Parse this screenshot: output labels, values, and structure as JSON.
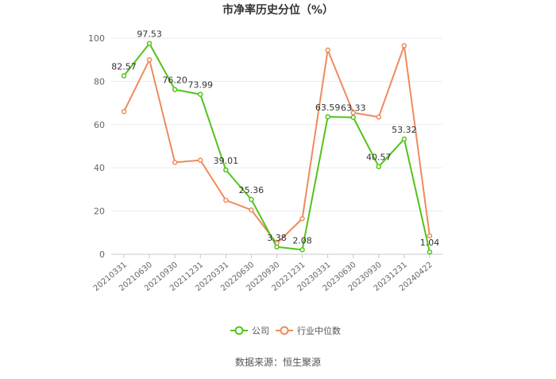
{
  "chart_data": {
    "type": "line",
    "title": "市净率历史分位（%）",
    "categories": [
      "20210331",
      "20210630",
      "20210930",
      "20211231",
      "20220331",
      "20220630",
      "20220930",
      "20221231",
      "20230331",
      "20230630",
      "20230930",
      "20231231",
      "20240422"
    ],
    "series": [
      {
        "name": "公司",
        "color": "#52c41a",
        "values": [
          82.57,
          97.53,
          76.2,
          73.99,
          39.01,
          25.36,
          3.38,
          2.08,
          63.59,
          63.33,
          40.57,
          53.32,
          1.04
        ],
        "labels": [
          "82.57",
          "97.53",
          "76.20",
          "73.99",
          "39.01",
          "25.36",
          "3.38",
          "2.08",
          "63.59",
          "63.33",
          "40.57",
          "53.32",
          "1.04"
        ]
      },
      {
        "name": "行业中位数",
        "color": "#f08a5d",
        "values": [
          66,
          90,
          42.5,
          43.5,
          25,
          20.5,
          5,
          16.5,
          94.5,
          65.5,
          63.5,
          96.5,
          8.5
        ]
      }
    ],
    "yticks": [
      "0",
      "20",
      "40",
      "60",
      "80",
      "100"
    ],
    "ylim": [
      0,
      100
    ],
    "grid": true,
    "legend_position": "bottom-center"
  },
  "source": "数据来源：恒生聚源"
}
